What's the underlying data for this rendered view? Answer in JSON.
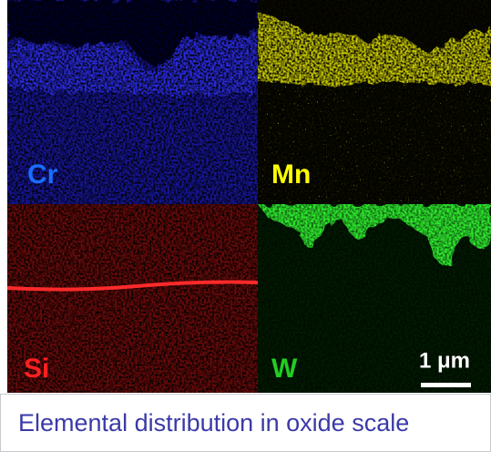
{
  "panels": [
    {
      "label": "Cr"
    },
    {
      "label": "Mn"
    },
    {
      "label": "Si"
    },
    {
      "label": "W"
    }
  ],
  "scale_bar": {
    "label": "1 μm"
  },
  "caption": "Elemental distribution in oxide scale"
}
